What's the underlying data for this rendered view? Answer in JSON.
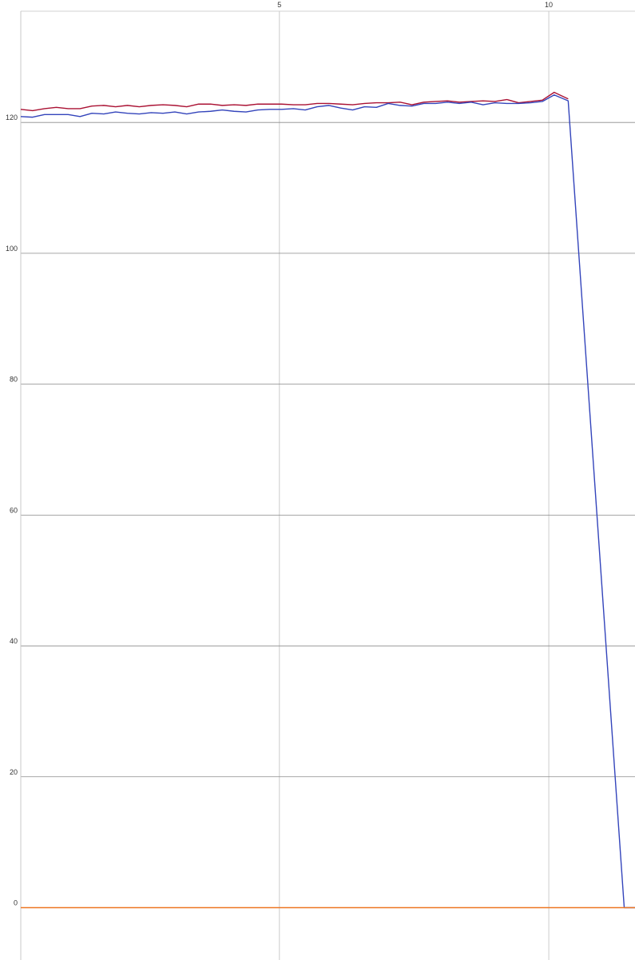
{
  "chart_data": {
    "type": "line",
    "title": "",
    "xlabel": "",
    "ylabel": "",
    "x_ticks": [
      5,
      10
    ],
    "y_ticks": [
      0,
      20,
      40,
      60,
      80,
      100,
      120
    ],
    "xlim": [
      0.2,
      11.6
    ],
    "ylim": [
      -8,
      137
    ],
    "grid": true,
    "series": [
      {
        "color": "#3344bb",
        "x": [
          0.2,
          0.42,
          0.64,
          0.86,
          1.08,
          1.3,
          1.52,
          1.74,
          1.96,
          2.18,
          2.4,
          2.62,
          2.84,
          3.06,
          3.28,
          3.5,
          3.72,
          3.94,
          4.16,
          4.38,
          4.6,
          4.82,
          5.04,
          5.26,
          5.48,
          5.7,
          5.92,
          6.14,
          6.36,
          6.58,
          6.8,
          7.02,
          7.24,
          7.46,
          7.68,
          7.9,
          8.12,
          8.34,
          8.56,
          8.78,
          9.0,
          9.22,
          9.44,
          9.66,
          9.88,
          10.1,
          10.36,
          11.4,
          11.6
        ],
        "y": [
          120.9,
          120.8,
          121.2,
          121.2,
          121.2,
          120.9,
          121.4,
          121.3,
          121.6,
          121.4,
          121.3,
          121.5,
          121.4,
          121.6,
          121.3,
          121.6,
          121.7,
          121.9,
          121.7,
          121.6,
          121.9,
          122.0,
          122.0,
          122.1,
          121.9,
          122.4,
          122.6,
          122.2,
          121.9,
          122.4,
          122.3,
          122.9,
          122.6,
          122.5,
          122.9,
          122.9,
          123.1,
          122.9,
          123.1,
          122.7,
          123.0,
          122.9,
          122.9,
          123.0,
          123.2,
          124.2,
          123.3,
          0.0,
          0.0
        ]
      },
      {
        "color": "#aa1133",
        "x": [
          0.2,
          0.42,
          0.64,
          0.86,
          1.08,
          1.3,
          1.52,
          1.74,
          1.96,
          2.18,
          2.4,
          2.62,
          2.84,
          3.06,
          3.28,
          3.5,
          3.72,
          3.94,
          4.16,
          4.38,
          4.6,
          4.82,
          5.04,
          5.26,
          5.48,
          5.7,
          5.92,
          6.14,
          6.36,
          6.58,
          6.8,
          7.02,
          7.24,
          7.46,
          7.68,
          7.9,
          8.12,
          8.34,
          8.56,
          8.78,
          9.0,
          9.22,
          9.44,
          9.66,
          9.88,
          10.1,
          10.36
        ],
        "y": [
          122.0,
          121.8,
          122.1,
          122.3,
          122.1,
          122.1,
          122.5,
          122.6,
          122.4,
          122.6,
          122.4,
          122.6,
          122.7,
          122.6,
          122.4,
          122.8,
          122.8,
          122.6,
          122.7,
          122.6,
          122.8,
          122.8,
          122.8,
          122.7,
          122.7,
          122.9,
          122.9,
          122.8,
          122.7,
          122.9,
          123.0,
          123.0,
          123.1,
          122.7,
          123.1,
          123.2,
          123.3,
          123.1,
          123.2,
          123.3,
          123.2,
          123.5,
          123.0,
          123.2,
          123.4,
          124.6,
          123.6
        ]
      },
      {
        "color": "#ee7722",
        "x": [
          0.2,
          11.6
        ],
        "y": [
          0,
          0
        ]
      }
    ]
  }
}
